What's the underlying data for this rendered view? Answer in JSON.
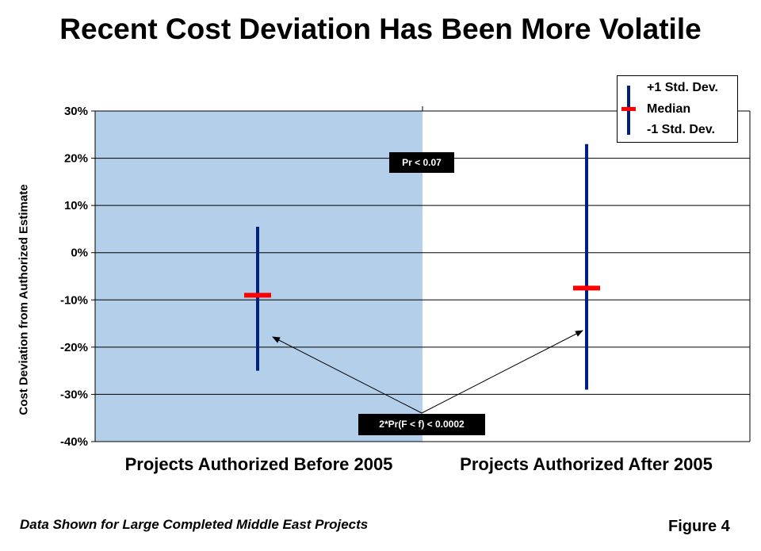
{
  "title": "Recent Cost Deviation Has Been More Volatile",
  "footnote": "Data Shown for Large Completed Middle East Projects",
  "figure_label": "Figure 4",
  "legend": {
    "upper": "+1 Std. Dev.",
    "median": "Median",
    "lower": "-1 Std. Dev."
  },
  "annotations": {
    "pr_test": "Pr < 0.07",
    "f_test": "2*Pr(F < f) < 0.0002"
  },
  "colors": {
    "range_bar": "#002080",
    "median": "#ff0000",
    "shaded_region": "#b4cfea",
    "gridline": "#000000"
  },
  "chart_data": {
    "type": "error-range",
    "title": "Recent Cost Deviation Has Been More Volatile",
    "ylabel": "Cost Deviation from Authorized Estimate",
    "xlabel": "",
    "categories": [
      "Projects Authorized Before 2005",
      "Projects Authorized After 2005"
    ],
    "series": [
      {
        "name": "+1 Std. Dev.",
        "values": [
          5.5,
          23
        ]
      },
      {
        "name": "Median",
        "values": [
          -9,
          -7.5
        ]
      },
      {
        "name": "-1 Std. Dev.",
        "values": [
          -25,
          -29
        ]
      }
    ],
    "ylim": [
      -40,
      30
    ],
    "yticks": [
      30,
      20,
      10,
      0,
      -10,
      -20,
      -30,
      -40
    ],
    "ytick_labels": [
      "30%",
      "20%",
      "10%",
      "0%",
      "-10%",
      "-20%",
      "-30%",
      "-40%"
    ],
    "grid": true,
    "legend_position": "top-right"
  }
}
